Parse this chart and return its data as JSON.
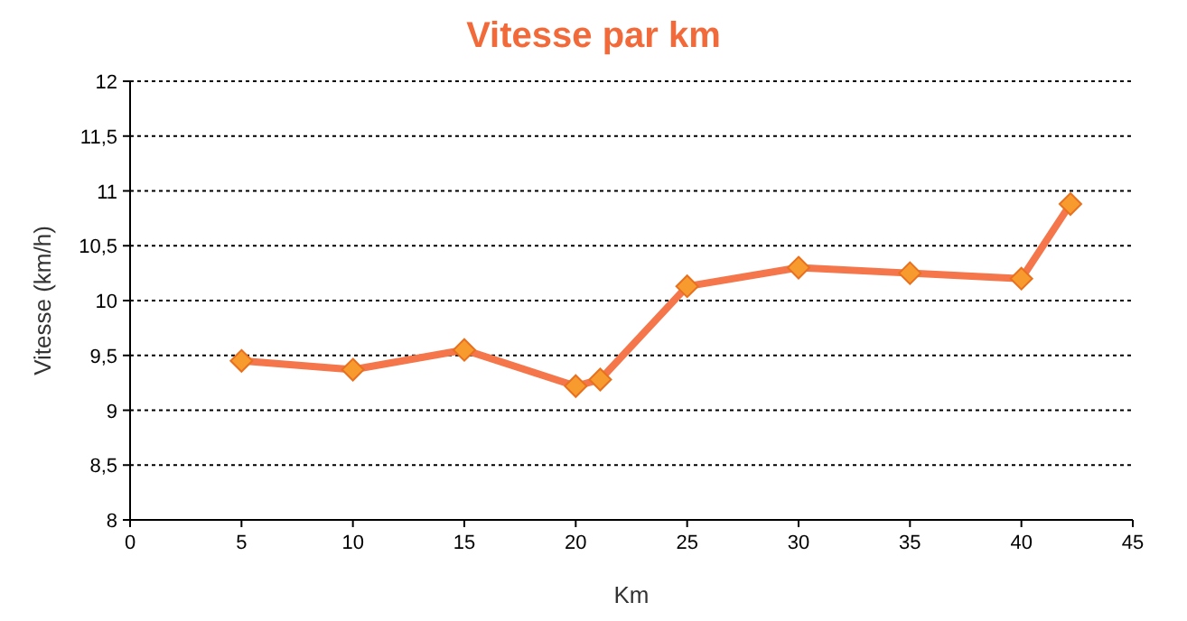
{
  "chart_data": {
    "type": "line",
    "title": "Vitesse par km",
    "xlabel": "Km",
    "ylabel": "Vitesse (km/h)",
    "x": [
      5,
      10,
      15,
      20,
      21.1,
      25,
      30,
      35,
      40,
      42.2
    ],
    "series": [
      {
        "color": "#f4764a",
        "values": [
          9.45,
          9.37,
          9.55,
          9.22,
          9.28,
          10.13,
          10.3,
          10.25,
          10.2,
          10.88
        ]
      }
    ],
    "xlim": [
      0,
      45
    ],
    "xticks": [
      0,
      5,
      10,
      15,
      20,
      25,
      30,
      35,
      40,
      45
    ],
    "ylim": [
      8,
      12
    ],
    "yticks": [
      8,
      {
        "value": 8.5,
        "label": "8,5"
      },
      9,
      {
        "value": 9.5,
        "label": "9,5"
      },
      10,
      {
        "value": 10.5,
        "label": "10,5"
      },
      11,
      {
        "value": 11.5,
        "label": "11,5"
      },
      12
    ],
    "grid": "y",
    "marker": "diamond",
    "line_style": "solid"
  }
}
